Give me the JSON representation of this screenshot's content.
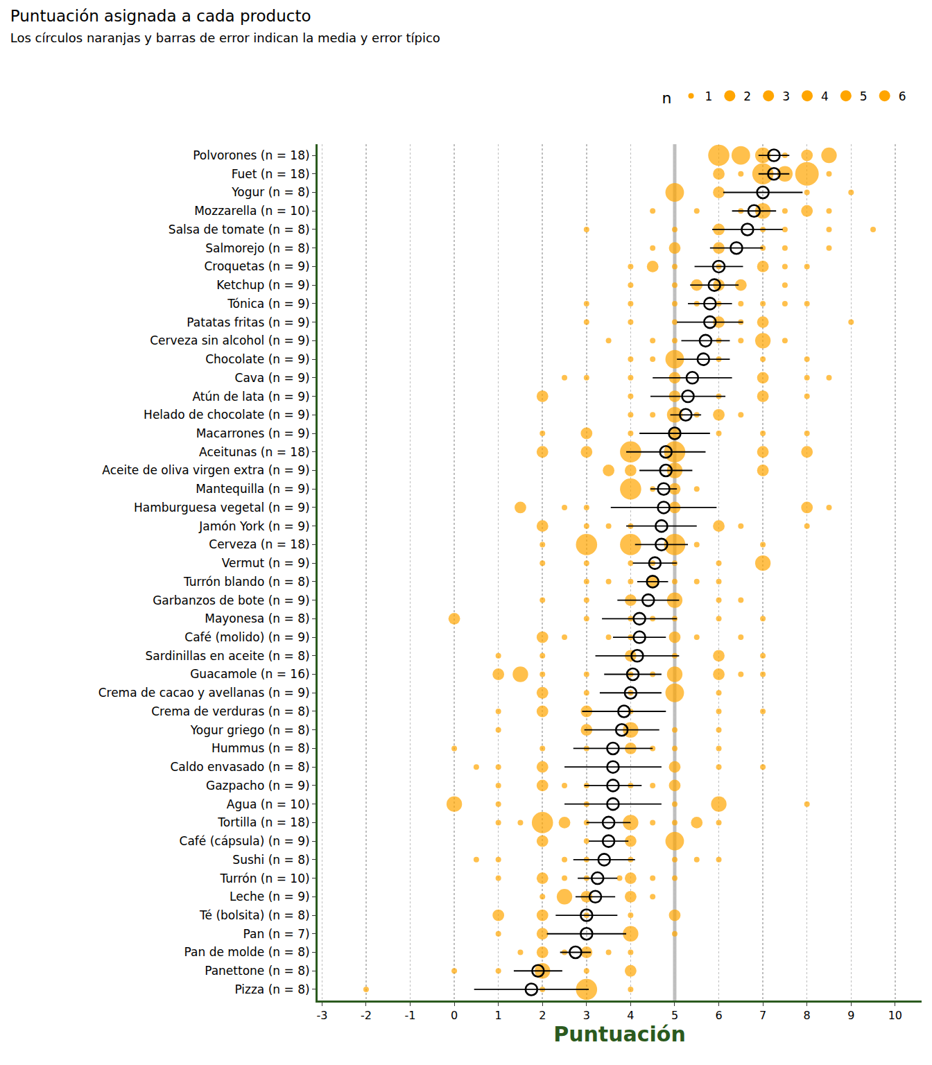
{
  "chart_data": {
    "type": "scatter",
    "title": "Puntuación asignada a cada producto",
    "subtitle": "Los círculos naranjas y barras de error indican la media y error típico",
    "x_label": "Puntuación",
    "color": "#FFA500",
    "grid": true,
    "xlim": [
      -3.1,
      10.6
    ],
    "xticks": [
      -3,
      -2,
      -1,
      0,
      1,
      2,
      3,
      4,
      5,
      6,
      7,
      8,
      9,
      10
    ],
    "reference_line": 5,
    "size_legend": {
      "title": "n",
      "values": [
        1,
        2,
        3,
        4,
        5,
        6
      ]
    },
    "categories": [
      "Polvorones (n = 18)",
      "Fuet (n = 18)",
      "Yogur (n = 8)",
      "Mozzarella (n = 10)",
      "Salsa de tomate (n = 8)",
      "Salmorejo (n = 8)",
      "Croquetas (n = 9)",
      "Ketchup (n = 9)",
      "Tónica (n = 9)",
      "Patatas fritas (n = 9)",
      "Cerveza sin alcohol (n = 9)",
      "Chocolate (n = 9)",
      "Cava (n = 9)",
      "Atún de lata (n = 9)",
      "Helado de chocolate (n = 9)",
      "Macarrones (n = 9)",
      "Aceitunas (n = 18)",
      "Aceite de oliva virgen extra (n = 9)",
      "Mantequilla (n = 9)",
      "Hamburguesa vegetal (n = 9)",
      "Jamón York (n = 9)",
      "Cerveza (n = 18)",
      "Vermut (n = 9)",
      "Turrón blando (n = 8)",
      "Garbanzos de bote (n = 9)",
      "Mayonesa (n = 8)",
      "Café (molido) (n = 9)",
      "Sardinillas en aceite (n = 8)",
      "Guacamole (n = 16)",
      "Crema de cacao y avellanas (n = 9)",
      "Crema de verduras (n = 8)",
      "Yogur griego (n = 8)",
      "Hummus (n = 8)",
      "Caldo envasado (n = 8)",
      "Gazpacho (n = 9)",
      "Agua (n = 10)",
      "Tortilla (n = 18)",
      "Café (cápsula) (n = 9)",
      "Sushi (n = 8)",
      "Turrón (n = 10)",
      "Leche (n = 9)",
      "Té (bolsita) (n = 8)",
      "Pan (n = 7)",
      "Pan de molde (n = 8)",
      "Panettone (n = 8)",
      "Pizza (n = 8)"
    ],
    "points": [
      [
        [
          6,
          5
        ],
        [
          6.5,
          4
        ],
        [
          7,
          3
        ],
        [
          7.5,
          1
        ],
        [
          8,
          2
        ],
        [
          8.5,
          3
        ]
      ],
      [
        [
          6,
          2
        ],
        [
          6.5,
          1
        ],
        [
          7,
          5
        ],
        [
          7.5,
          3
        ],
        [
          8,
          6
        ],
        [
          8.5,
          1
        ]
      ],
      [
        [
          5,
          4
        ],
        [
          6,
          2
        ],
        [
          8,
          1
        ],
        [
          9,
          1
        ]
      ],
      [
        [
          4.5,
          1
        ],
        [
          5.5,
          1
        ],
        [
          6.5,
          1
        ],
        [
          7,
          3
        ],
        [
          7.5,
          1
        ],
        [
          8,
          2
        ],
        [
          8.5,
          1
        ]
      ],
      [
        [
          3,
          1
        ],
        [
          5,
          1
        ],
        [
          6,
          2
        ],
        [
          7,
          1
        ],
        [
          7.5,
          1
        ],
        [
          8.5,
          1
        ],
        [
          9.5,
          1
        ]
      ],
      [
        [
          4.5,
          1
        ],
        [
          5,
          2
        ],
        [
          6,
          2
        ],
        [
          7,
          1
        ],
        [
          7.5,
          1
        ],
        [
          8.5,
          1
        ]
      ],
      [
        [
          4,
          1
        ],
        [
          4.5,
          2
        ],
        [
          5,
          1
        ],
        [
          6,
          1
        ],
        [
          7,
          2
        ],
        [
          7.5,
          1
        ],
        [
          8,
          1
        ]
      ],
      [
        [
          4,
          1
        ],
        [
          5,
          1
        ],
        [
          5.5,
          2
        ],
        [
          6,
          2
        ],
        [
          6.5,
          2
        ],
        [
          7.5,
          1
        ]
      ],
      [
        [
          3,
          1
        ],
        [
          4,
          1
        ],
        [
          5,
          1
        ],
        [
          5.5,
          1
        ],
        [
          6,
          1
        ],
        [
          6.5,
          1
        ],
        [
          7,
          1
        ],
        [
          7.5,
          1
        ],
        [
          8,
          1
        ]
      ],
      [
        [
          3,
          1
        ],
        [
          4,
          1
        ],
        [
          5,
          1
        ],
        [
          6,
          2
        ],
        [
          6.5,
          1
        ],
        [
          7,
          2
        ],
        [
          9,
          1
        ]
      ],
      [
        [
          3.5,
          1
        ],
        [
          4.5,
          1
        ],
        [
          5,
          1
        ],
        [
          6,
          1
        ],
        [
          6.5,
          1
        ],
        [
          7,
          3
        ],
        [
          7.5,
          1
        ]
      ],
      [
        [
          4,
          1
        ],
        [
          4.5,
          1
        ],
        [
          5,
          4
        ],
        [
          6,
          1
        ],
        [
          7,
          1
        ],
        [
          8,
          1
        ]
      ],
      [
        [
          2.5,
          1
        ],
        [
          3,
          1
        ],
        [
          4,
          1
        ],
        [
          5,
          2
        ],
        [
          7,
          2
        ],
        [
          8,
          1
        ],
        [
          8.5,
          1
        ]
      ],
      [
        [
          2,
          2
        ],
        [
          4,
          1
        ],
        [
          5,
          2
        ],
        [
          6,
          1
        ],
        [
          7,
          2
        ],
        [
          8,
          1
        ]
      ],
      [
        [
          4,
          1
        ],
        [
          4.5,
          1
        ],
        [
          5,
          3
        ],
        [
          5.5,
          1
        ],
        [
          6,
          2
        ],
        [
          6.5,
          1
        ]
      ],
      [
        [
          2,
          1
        ],
        [
          3,
          2
        ],
        [
          4,
          1
        ],
        [
          5,
          2
        ],
        [
          6,
          1
        ],
        [
          7,
          1
        ],
        [
          8,
          1
        ]
      ],
      [
        [
          2,
          2
        ],
        [
          3,
          2
        ],
        [
          4,
          5
        ],
        [
          5,
          5
        ],
        [
          7,
          2
        ],
        [
          8,
          2
        ]
      ],
      [
        [
          3.5,
          2
        ],
        [
          4,
          2
        ],
        [
          5,
          3
        ],
        [
          7,
          2
        ]
      ],
      [
        [
          4,
          5
        ],
        [
          4.5,
          1
        ],
        [
          5,
          2
        ],
        [
          5.5,
          1
        ]
      ],
      [
        [
          1.5,
          2
        ],
        [
          2.5,
          1
        ],
        [
          3,
          1
        ],
        [
          5,
          2
        ],
        [
          8,
          2
        ],
        [
          8.5,
          1
        ]
      ],
      [
        [
          2,
          2
        ],
        [
          3,
          1
        ],
        [
          3.5,
          1
        ],
        [
          4,
          1
        ],
        [
          6,
          2
        ],
        [
          6.5,
          1
        ],
        [
          8,
          1
        ]
      ],
      [
        [
          2,
          1
        ],
        [
          3,
          5
        ],
        [
          4,
          5
        ],
        [
          5,
          5
        ],
        [
          5.5,
          1
        ],
        [
          7,
          1
        ]
      ],
      [
        [
          2,
          1
        ],
        [
          3,
          1
        ],
        [
          4,
          1
        ],
        [
          4.5,
          1
        ],
        [
          5,
          1
        ],
        [
          6,
          1
        ],
        [
          7,
          3
        ]
      ],
      [
        [
          3,
          1
        ],
        [
          3.5,
          1
        ],
        [
          4,
          1
        ],
        [
          4.5,
          2
        ],
        [
          5,
          1
        ],
        [
          5.5,
          1
        ],
        [
          6,
          1
        ]
      ],
      [
        [
          2,
          1
        ],
        [
          3,
          1
        ],
        [
          4,
          2
        ],
        [
          5,
          3
        ],
        [
          6,
          1
        ],
        [
          6.5,
          1
        ]
      ],
      [
        [
          0,
          2
        ],
        [
          3,
          1
        ],
        [
          4,
          1
        ],
        [
          4.5,
          1
        ],
        [
          5,
          1
        ],
        [
          6,
          1
        ],
        [
          7,
          1
        ]
      ],
      [
        [
          2,
          2
        ],
        [
          2.5,
          1
        ],
        [
          3.5,
          1
        ],
        [
          4,
          1
        ],
        [
          5,
          2
        ],
        [
          5.5,
          1
        ],
        [
          6.5,
          1
        ]
      ],
      [
        [
          1,
          1
        ],
        [
          2,
          1
        ],
        [
          4,
          2
        ],
        [
          5,
          1
        ],
        [
          6,
          2
        ],
        [
          7,
          1
        ]
      ],
      [
        [
          1,
          2
        ],
        [
          1.5,
          3
        ],
        [
          2,
          1
        ],
        [
          3,
          1
        ],
        [
          4,
          1
        ],
        [
          4.5,
          1
        ],
        [
          5,
          3
        ],
        [
          6,
          2
        ],
        [
          6.5,
          1
        ],
        [
          7,
          1
        ]
      ],
      [
        [
          2,
          2
        ],
        [
          3,
          1
        ],
        [
          4,
          1
        ],
        [
          5,
          4
        ],
        [
          6,
          1
        ]
      ],
      [
        [
          1,
          1
        ],
        [
          2,
          2
        ],
        [
          3,
          2
        ],
        [
          4,
          1
        ],
        [
          6,
          1
        ],
        [
          7,
          1
        ]
      ],
      [
        [
          1,
          1
        ],
        [
          3,
          2
        ],
        [
          4,
          3
        ],
        [
          5,
          1
        ],
        [
          6,
          1
        ]
      ],
      [
        [
          0,
          1
        ],
        [
          2,
          1
        ],
        [
          3,
          1
        ],
        [
          4,
          2
        ],
        [
          4.5,
          1
        ],
        [
          5,
          1
        ],
        [
          6,
          1
        ]
      ],
      [
        [
          0.5,
          1
        ],
        [
          1,
          1
        ],
        [
          2,
          2
        ],
        [
          5,
          2
        ],
        [
          6,
          1
        ],
        [
          7,
          1
        ]
      ],
      [
        [
          1,
          1
        ],
        [
          2,
          2
        ],
        [
          2.5,
          1
        ],
        [
          3,
          1
        ],
        [
          4,
          1
        ],
        [
          4.5,
          1
        ],
        [
          5,
          2
        ]
      ],
      [
        [
          0,
          3
        ],
        [
          1,
          1
        ],
        [
          3,
          1
        ],
        [
          5,
          1
        ],
        [
          6,
          3
        ],
        [
          8,
          1
        ]
      ],
      [
        [
          1,
          1
        ],
        [
          1.5,
          1
        ],
        [
          2,
          5
        ],
        [
          2.5,
          2
        ],
        [
          3,
          1
        ],
        [
          4,
          3
        ],
        [
          4.5,
          1
        ],
        [
          5,
          1
        ],
        [
          5.5,
          2
        ],
        [
          6,
          1
        ]
      ],
      [
        [
          2,
          2
        ],
        [
          3,
          1
        ],
        [
          4,
          2
        ],
        [
          5,
          4
        ]
      ],
      [
        [
          0.5,
          1
        ],
        [
          1,
          1
        ],
        [
          2.5,
          1
        ],
        [
          3,
          1
        ],
        [
          4,
          1
        ],
        [
          5,
          1
        ],
        [
          5.5,
          1
        ],
        [
          6,
          1
        ]
      ],
      [
        [
          1,
          1
        ],
        [
          2,
          2
        ],
        [
          2.5,
          1
        ],
        [
          3,
          1
        ],
        [
          3.75,
          1
        ],
        [
          4,
          2
        ],
        [
          4.5,
          1
        ],
        [
          5,
          1
        ]
      ],
      [
        [
          2,
          1
        ],
        [
          2.5,
          3
        ],
        [
          3,
          2
        ],
        [
          4,
          2
        ],
        [
          4.5,
          1
        ]
      ],
      [
        [
          1,
          2
        ],
        [
          2,
          2
        ],
        [
          3,
          1
        ],
        [
          4,
          1
        ],
        [
          5,
          2
        ]
      ],
      [
        [
          1,
          1
        ],
        [
          2,
          2
        ],
        [
          4,
          3
        ],
        [
          5,
          1
        ]
      ],
      [
        [
          1.5,
          1
        ],
        [
          2,
          2
        ],
        [
          2.5,
          1
        ],
        [
          3,
          2
        ],
        [
          3.5,
          1
        ],
        [
          4,
          1
        ]
      ],
      [
        [
          0,
          1
        ],
        [
          1,
          1
        ],
        [
          2,
          3
        ],
        [
          3,
          1
        ],
        [
          4,
          2
        ]
      ],
      [
        [
          -2,
          1
        ],
        [
          2,
          1
        ],
        [
          3,
          5
        ],
        [
          4,
          1
        ]
      ]
    ],
    "means": [
      7.25,
      7.25,
      7.0,
      6.8,
      6.65,
      6.4,
      6.0,
      5.9,
      5.8,
      5.8,
      5.7,
      5.65,
      5.4,
      5.3,
      5.25,
      5.0,
      4.8,
      4.8,
      4.75,
      4.75,
      4.7,
      4.7,
      4.55,
      4.5,
      4.4,
      4.2,
      4.2,
      4.15,
      4.05,
      4.0,
      3.85,
      3.8,
      3.6,
      3.6,
      3.6,
      3.6,
      3.5,
      3.5,
      3.4,
      3.25,
      3.2,
      3.0,
      3.0,
      2.75,
      1.9,
      1.75
    ],
    "errors": [
      0.35,
      0.35,
      0.9,
      0.5,
      0.8,
      0.6,
      0.55,
      0.55,
      0.5,
      0.75,
      0.55,
      0.6,
      0.9,
      0.85,
      0.35,
      0.8,
      0.9,
      0.6,
      0.3,
      1.2,
      0.8,
      0.6,
      0.5,
      0.35,
      0.7,
      0.85,
      0.6,
      0.95,
      0.65,
      0.7,
      0.95,
      0.85,
      0.9,
      1.1,
      0.65,
      1.1,
      0.5,
      0.45,
      0.7,
      0.45,
      0.45,
      0.7,
      0.9,
      0.35,
      0.55,
      1.3
    ]
  }
}
